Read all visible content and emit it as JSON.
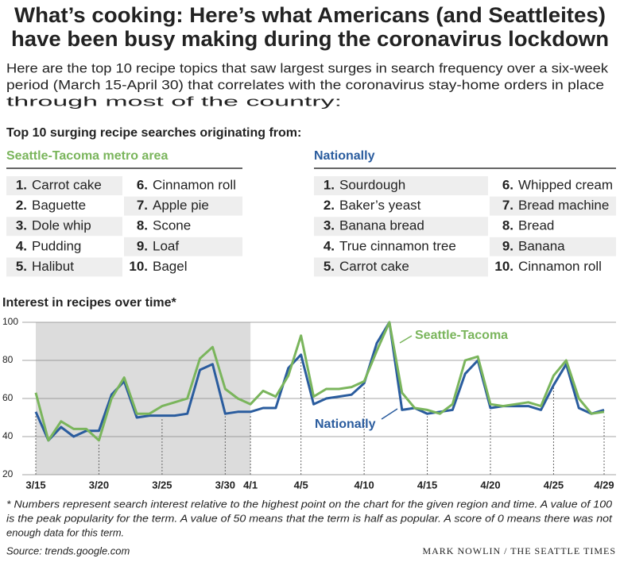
{
  "header": {
    "title_lines": [
      "What’s cooking: Here’s what Americans (and Seattleites)",
      "have been busy making during the coronavirus lockdown"
    ],
    "intro_lines": [
      "Here are the top 10 recipe topics that saw largest surges in search frequency over a six-week",
      "period (March 15-April 30) that correlates with the coronavirus stay-home orders in place",
      "through most of the country:"
    ]
  },
  "lists": {
    "heading": "Top 10 surging recipe searches originating from:",
    "seattle": {
      "title": "Seattle-Tacoma metro area",
      "items": [
        {
          "rank": "1.",
          "name": "Carrot cake"
        },
        {
          "rank": "2.",
          "name": "Baguette"
        },
        {
          "rank": "3.",
          "name": "Dole whip"
        },
        {
          "rank": "4.",
          "name": "Pudding"
        },
        {
          "rank": "5.",
          "name": "Halibut"
        },
        {
          "rank": "6.",
          "name": "Cinnamon roll"
        },
        {
          "rank": "7.",
          "name": "Apple pie"
        },
        {
          "rank": "8.",
          "name": "Scone"
        },
        {
          "rank": "9.",
          "name": "Loaf"
        },
        {
          "rank": "10.",
          "name": "Bagel"
        }
      ]
    },
    "national": {
      "title": "Nationally",
      "items": [
        {
          "rank": "1.",
          "name": "Sourdough"
        },
        {
          "rank": "2.",
          "name": "Baker’s yeast"
        },
        {
          "rank": "3.",
          "name": "Banana bread"
        },
        {
          "rank": "4.",
          "name": "True cinnamon tree"
        },
        {
          "rank": "5.",
          "name": "Carrot cake"
        },
        {
          "rank": "6.",
          "name": "Whipped cream"
        },
        {
          "rank": "7.",
          "name": "Bread machine"
        },
        {
          "rank": "8.",
          "name": "Bread"
        },
        {
          "rank": "9.",
          "name": "Banana"
        },
        {
          "rank": "10.",
          "name": "Cinnamon roll"
        }
      ]
    }
  },
  "chart_data": {
    "type": "line",
    "title": "Interest in recipes over time*",
    "categories": [
      "3/15",
      null,
      null,
      null,
      null,
      "3/20",
      null,
      null,
      null,
      null,
      "3/25",
      null,
      null,
      null,
      null,
      "3/30",
      null,
      "4/1",
      null,
      null,
      null,
      "4/5",
      null,
      null,
      null,
      null,
      "4/10",
      null,
      null,
      null,
      null,
      "4/15",
      null,
      null,
      null,
      null,
      "4/20",
      null,
      null,
      null,
      null,
      "4/25",
      null,
      null,
      null,
      "4/29"
    ],
    "series": [
      {
        "name": "Nationally",
        "color": "#2a5c9e",
        "values": [
          53,
          38,
          45,
          40,
          43,
          43,
          62,
          69,
          50,
          51,
          51,
          51,
          52,
          75,
          78,
          52,
          53,
          53,
          55,
          55,
          76,
          83,
          57,
          60,
          61,
          62,
          68,
          89,
          100,
          54,
          55,
          52,
          53,
          54,
          73,
          80,
          55,
          56,
          56,
          56,
          54,
          67,
          78,
          55,
          52,
          54
        ]
      },
      {
        "name": "Seattle-Tacoma",
        "color": "#7ab55c",
        "values": [
          63,
          38,
          48,
          44,
          44,
          38,
          60,
          71,
          52,
          52,
          56,
          58,
          60,
          81,
          87,
          65,
          60,
          57,
          64,
          61,
          72,
          93,
          61,
          65,
          65,
          66,
          69,
          85,
          100,
          63,
          55,
          54,
          52,
          57,
          80,
          82,
          57,
          56,
          57,
          58,
          56,
          72,
          80,
          60,
          52,
          53
        ]
      }
    ],
    "ylim": [
      20,
      100
    ],
    "yticks": [
      20,
      40,
      60,
      80,
      100
    ],
    "grid": true
  },
  "footer": {
    "note_lines": [
      "* Numbers represent search interest relative to the highest point on the chart for the given region and time. A value of 100",
      "is the peak popularity for the term. A value of 50 means that the term is half as popular. A score of 0 means there was not",
      "enough data for this term."
    ],
    "source": "Source: trends.google.com",
    "credit": "MARK NOWLIN / THE SEATTLE TIMES"
  }
}
